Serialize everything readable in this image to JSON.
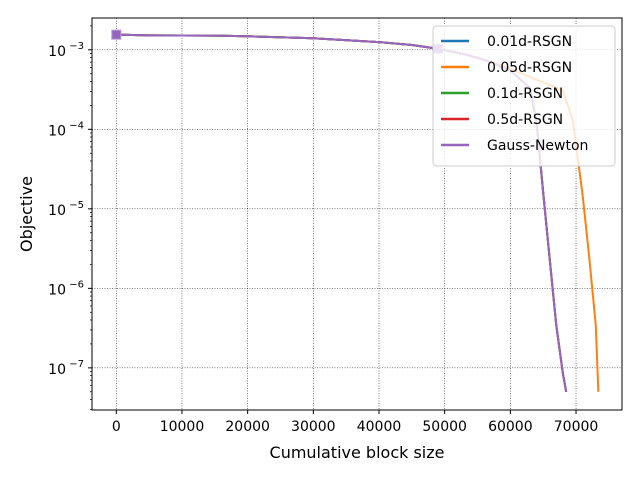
{
  "chart_data": {
    "type": "line",
    "xlabel": "Cumulative block size",
    "ylabel": "Objective",
    "xlim": [
      -3700,
      77000
    ],
    "ylim_log10": [
      -7.53,
      -2.6
    ],
    "y_scale": "log",
    "grid": true,
    "legend_position": "top-right",
    "x_ticks": [
      0,
      10000,
      20000,
      30000,
      40000,
      50000,
      60000,
      70000
    ],
    "y_ticks": [
      {
        "value": 1e-07,
        "base": "10",
        "exp": "−7"
      },
      {
        "value": 1e-06,
        "base": "10",
        "exp": "−6"
      },
      {
        "value": 1e-05,
        "base": "10",
        "exp": "−5"
      },
      {
        "value": 0.0001,
        "base": "10",
        "exp": "−4"
      },
      {
        "value": 0.001,
        "base": "10",
        "exp": "−3"
      }
    ],
    "series": [
      {
        "name": "0.01d-RSGN",
        "color": "#1f77b4",
        "x": [
          0,
          5000,
          15000,
          20000,
          30000,
          40000,
          45000,
          49000,
          53000,
          56000,
          60000,
          63000,
          64000,
          65000,
          66000,
          67000,
          68000,
          68500
        ],
        "y": [
          0.00155,
          0.00152,
          0.00151,
          0.00148,
          0.0014,
          0.00125,
          0.00115,
          0.00103,
          0.00088,
          0.00075,
          0.00055,
          0.00033,
          0.00012,
          1.6e-05,
          2.3e-06,
          3.4e-07,
          8.5e-08,
          5e-08
        ]
      },
      {
        "name": "0.05d-RSGN",
        "color": "#ff7f0e",
        "x": [
          0,
          5000,
          15000,
          20000,
          30000,
          40000,
          45000,
          49000,
          53000,
          56000,
          60000,
          64000,
          66000,
          68000,
          69500,
          71000,
          72000,
          73000,
          73400
        ],
        "y": [
          0.00155,
          0.00152,
          0.00151,
          0.00148,
          0.0014,
          0.00125,
          0.00115,
          0.00103,
          0.00088,
          0.00075,
          0.00058,
          0.00042,
          0.00036,
          0.00031,
          0.00013,
          1.5e-05,
          2.5e-06,
          3.5e-07,
          5e-08
        ]
      },
      {
        "name": "0.1d-RSGN",
        "color": "#2ca02c",
        "x": [
          0,
          5000,
          15000,
          20000,
          30000,
          40000,
          45000,
          49000,
          53000,
          56000,
          60000,
          63000,
          64000,
          65000,
          66000,
          67000,
          68000,
          68500
        ],
        "y": [
          0.00155,
          0.00152,
          0.00151,
          0.00148,
          0.0014,
          0.00125,
          0.00115,
          0.00103,
          0.00088,
          0.00075,
          0.00055,
          0.00033,
          0.00012,
          1.6e-05,
          2.3e-06,
          3.4e-07,
          8.5e-08,
          5e-08
        ]
      },
      {
        "name": "0.5d-RSGN",
        "color": "#d62728",
        "x": [
          0,
          5000,
          15000,
          20000,
          30000,
          40000,
          45000,
          49000,
          53000,
          56000,
          60000,
          63000,
          64000,
          65000,
          66000,
          67000,
          68000,
          68500
        ],
        "y": [
          0.00155,
          0.00152,
          0.00151,
          0.00148,
          0.0014,
          0.00125,
          0.00115,
          0.00103,
          0.00088,
          0.00075,
          0.00055,
          0.00033,
          0.00012,
          1.6e-05,
          2.3e-06,
          3.4e-07,
          8.5e-08,
          5e-08
        ]
      },
      {
        "name": "Gauss-Newton",
        "color": "#9467bd",
        "x": [
          0,
          5000,
          15000,
          20000,
          30000,
          40000,
          45000,
          49000,
          53000,
          56000,
          60000,
          63000,
          64000,
          65000,
          66000,
          67000,
          68000,
          68500
        ],
        "y": [
          0.00155,
          0.00152,
          0.00151,
          0.00148,
          0.0014,
          0.00125,
          0.00115,
          0.00103,
          0.00088,
          0.00075,
          0.00055,
          0.00033,
          0.00012,
          1.6e-05,
          2.3e-06,
          3.4e-07,
          8.5e-08,
          5e-08
        ]
      }
    ],
    "markers": [
      {
        "x": 0,
        "y": 0.00155
      },
      {
        "x": 49000,
        "y": 0.00103
      }
    ]
  }
}
